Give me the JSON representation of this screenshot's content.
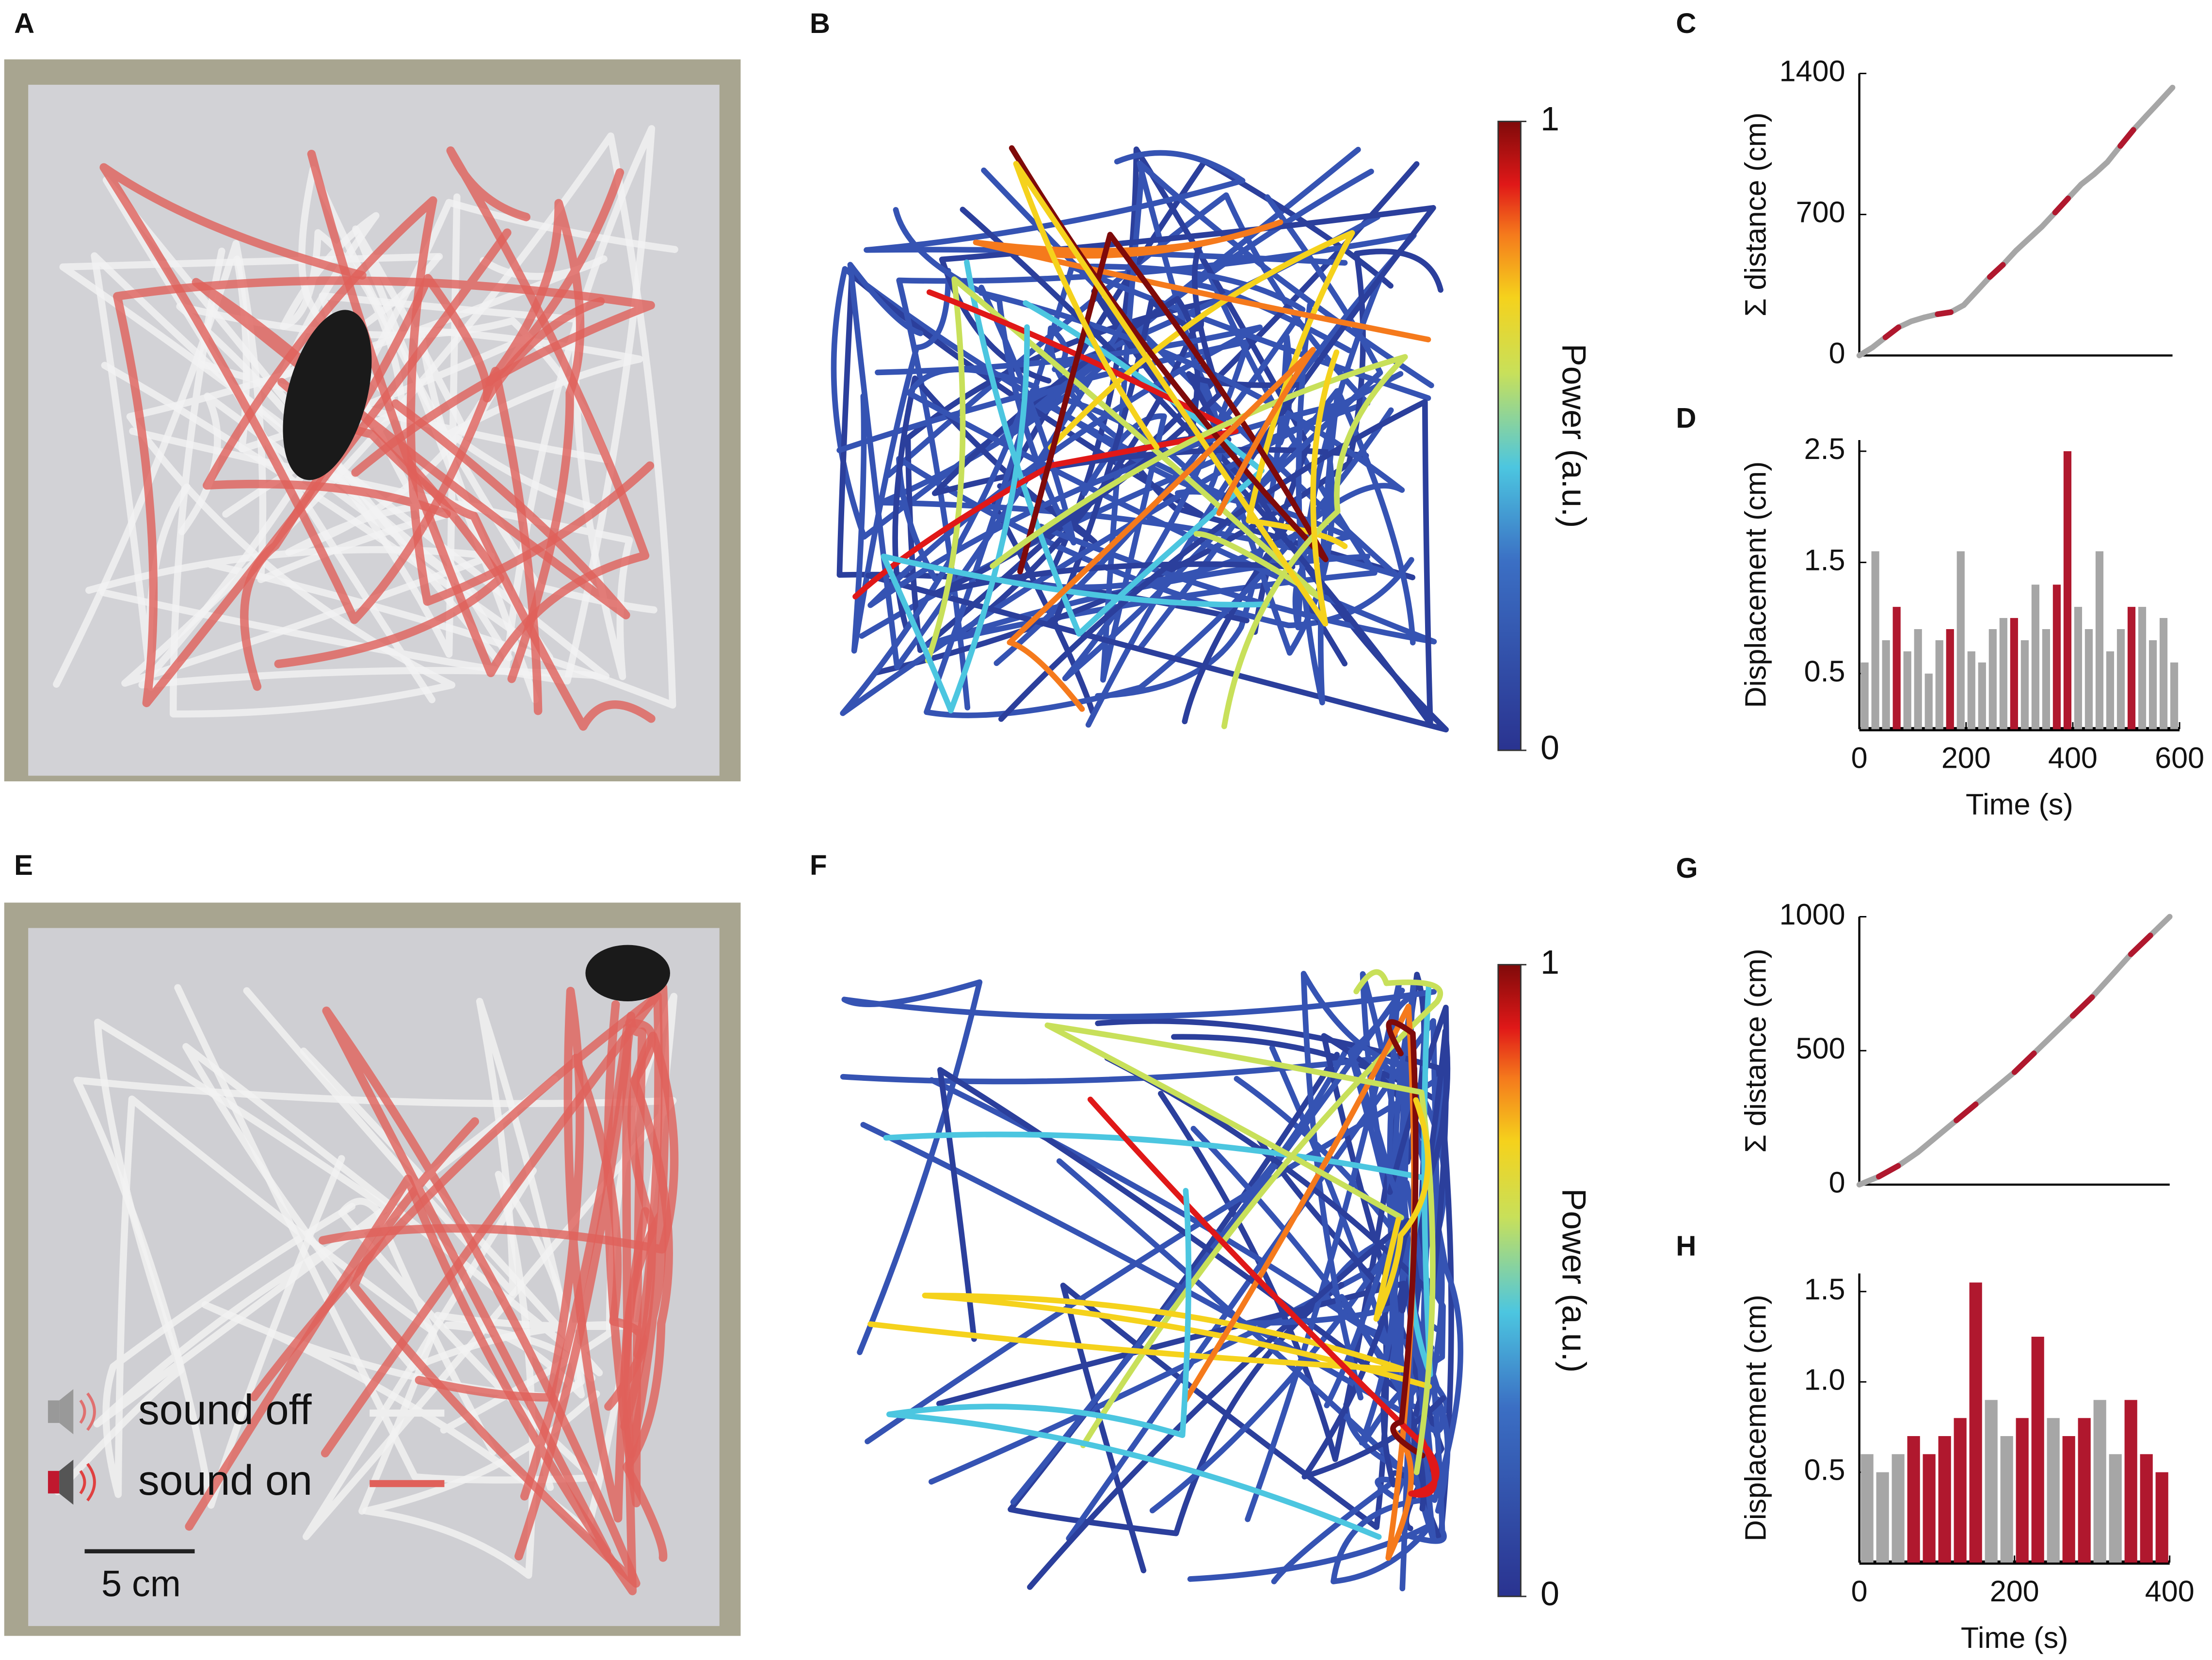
{
  "panels": {
    "a": "A",
    "b": "B",
    "c": "C",
    "d": "D",
    "e": "E",
    "f": "F",
    "g": "G",
    "h": "H"
  },
  "legend": {
    "items": [
      {
        "label": "sound off",
        "color": "#eeeeee"
      },
      {
        "label": "sound on",
        "color": "#e0605a"
      }
    ]
  },
  "scale_bar": "5 cm",
  "chart_data": [
    {
      "type": "line",
      "ylabel": "Σ distance (cm)",
      "x": [
        0,
        25,
        50,
        75,
        100,
        125,
        150,
        175,
        200,
        225,
        250,
        275,
        300,
        325,
        350,
        375,
        400,
        425,
        450,
        475,
        500,
        525,
        550,
        575,
        600
      ],
      "series": [
        {
          "color": "#a6a6a6",
          "values": [
            0,
            40,
            90,
            140,
            170,
            190,
            205,
            215,
            250,
            320,
            390,
            450,
            520,
            580,
            640,
            710,
            780,
            850,
            900,
            960,
            1040,
            1120,
            1190,
            1260,
            1330
          ]
        },
        {
          "color": "#b0182e",
          "values": [
            null,
            null,
            90,
            140,
            null,
            null,
            205,
            215,
            null,
            null,
            390,
            450,
            null,
            null,
            null,
            710,
            780,
            null,
            null,
            null,
            1040,
            1120,
            null,
            null,
            null
          ]
        }
      ],
      "xlim": [
        0,
        600
      ],
      "ylim": [
        0,
        1400
      ],
      "yticks": [
        0,
        700,
        1400
      ]
    },
    {
      "type": "histogram",
      "ylabel": "Displacement (cm)",
      "xlabel": "Time (s)",
      "bins": [
        0,
        20,
        40,
        60,
        80,
        100,
        120,
        140,
        160,
        180,
        200,
        220,
        240,
        260,
        280,
        300,
        320,
        340,
        360,
        380,
        400,
        420,
        440,
        460,
        480,
        500,
        520,
        540,
        560,
        580,
        600
      ],
      "series": [
        {
          "color": "#a6a6a6",
          "values": [
            0.6,
            1.6,
            0.8,
            null,
            0.7,
            0.9,
            0.5,
            0.8,
            null,
            1.6,
            0.7,
            0.6,
            0.9,
            1.0,
            null,
            0.8,
            1.3,
            0.9,
            null,
            null,
            1.1,
            0.9,
            1.6,
            0.7,
            0.9,
            null,
            1.1,
            0.8,
            1.0,
            0.6
          ]
        },
        {
          "color": "#b0182e",
          "values": [
            null,
            null,
            null,
            1.1,
            null,
            null,
            null,
            null,
            0.9,
            null,
            null,
            null,
            null,
            null,
            1.0,
            null,
            null,
            null,
            1.3,
            2.5,
            null,
            null,
            null,
            null,
            null,
            1.1,
            null,
            null,
            null,
            null
          ]
        }
      ],
      "xlim": [
        0,
        600
      ],
      "xticks": [
        0,
        200,
        400,
        600
      ],
      "ylim": [
        0,
        2.6
      ],
      "yticks": [
        0.5,
        1.5,
        2.5
      ]
    },
    {
      "type": "line",
      "ylabel": "Σ distance (cm)",
      "x": [
        0,
        25,
        50,
        75,
        100,
        125,
        150,
        175,
        200,
        225,
        250,
        275,
        300,
        325,
        350,
        375,
        400
      ],
      "series": [
        {
          "color": "#a6a6a6",
          "values": [
            0,
            30,
            70,
            120,
            180,
            240,
            300,
            360,
            420,
            490,
            560,
            630,
            700,
            780,
            860,
            930,
            1000
          ]
        },
        {
          "color": "#b0182e",
          "values": [
            null,
            30,
            70,
            null,
            null,
            240,
            300,
            null,
            420,
            490,
            null,
            630,
            700,
            null,
            860,
            930,
            null
          ]
        }
      ],
      "xlim": [
        0,
        400
      ],
      "ylim": [
        0,
        1000
      ],
      "yticks": [
        0,
        500,
        1000
      ]
    },
    {
      "type": "histogram",
      "ylabel": "Displacement (cm)",
      "xlabel": "Time (s)",
      "bins": [
        0,
        20,
        40,
        60,
        80,
        100,
        120,
        140,
        160,
        180,
        200,
        220,
        240,
        260,
        280,
        300,
        320,
        340,
        360,
        380,
        400
      ],
      "series": [
        {
          "color": "#a6a6a6",
          "values": [
            0.6,
            0.5,
            0.6,
            null,
            null,
            null,
            null,
            null,
            0.9,
            0.7,
            null,
            null,
            0.8,
            null,
            null,
            0.9,
            0.6,
            null,
            null,
            null
          ]
        },
        {
          "color": "#b0182e",
          "values": [
            null,
            null,
            null,
            0.7,
            0.6,
            0.7,
            0.8,
            1.55,
            null,
            null,
            0.8,
            1.25,
            null,
            0.7,
            0.8,
            null,
            null,
            0.9,
            0.6,
            0.5
          ]
        }
      ],
      "xlim": [
        0,
        400
      ],
      "xticks": [
        0,
        200,
        400
      ],
      "ylim": [
        0,
        1.6
      ],
      "yticks": [
        0.5,
        {
          "value": 1,
          "label": "1.0"
        },
        1.5
      ]
    },
    {
      "type": "colorbar",
      "label": "Power (a.u.)",
      "ylim": [
        0,
        1
      ],
      "yticks": [
        0,
        1
      ]
    },
    {
      "type": "colorbar",
      "label": "Power (a.u.)",
      "ylim": [
        0,
        1
      ],
      "yticks": [
        0,
        1
      ]
    }
  ]
}
